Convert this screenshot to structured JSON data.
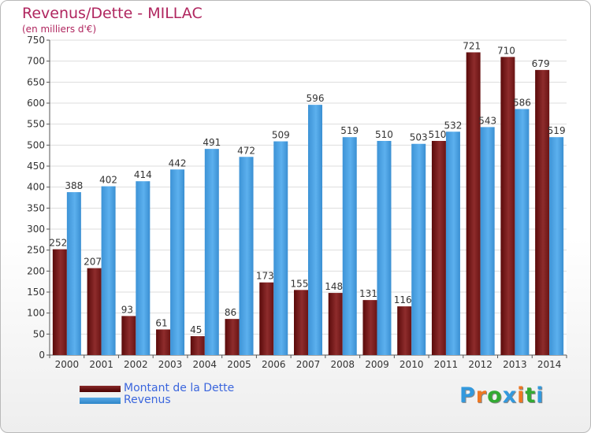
{
  "title": "Revenus/Dette - MILLAC",
  "subtitle": "(en milliers d'€)",
  "logo": {
    "letters": [
      "P",
      "r",
      "o",
      "x",
      "i",
      "t",
      "i"
    ],
    "colors": [
      "#3399dd",
      "#ee7722",
      "#33aa33",
      "#3399dd",
      "#ee7722",
      "#33aa33",
      "#3399dd"
    ]
  },
  "chart_data": {
    "type": "bar",
    "categories": [
      "2000",
      "2001",
      "2002",
      "2003",
      "2004",
      "2005",
      "2006",
      "2007",
      "2008",
      "2009",
      "2010",
      "2011",
      "2012",
      "2013",
      "2014"
    ],
    "series": [
      {
        "name": "Montant de la Dette",
        "color": "#7b1e1e",
        "values": [
          252,
          207,
          93,
          61,
          45,
          86,
          173,
          155,
          148,
          131,
          116,
          510,
          721,
          710,
          679
        ]
      },
      {
        "name": "Revenus",
        "color": "#4aa3e3",
        "values": [
          388,
          402,
          414,
          442,
          491,
          472,
          509,
          596,
          519,
          510,
          503,
          532,
          543,
          586,
          519
        ]
      }
    ],
    "ylim": [
      0,
      750
    ],
    "yticks": [
      0,
      50,
      100,
      150,
      200,
      250,
      300,
      350,
      400,
      450,
      500,
      550,
      600,
      650,
      700,
      750
    ],
    "grid": true,
    "legend": "bottom-left"
  }
}
